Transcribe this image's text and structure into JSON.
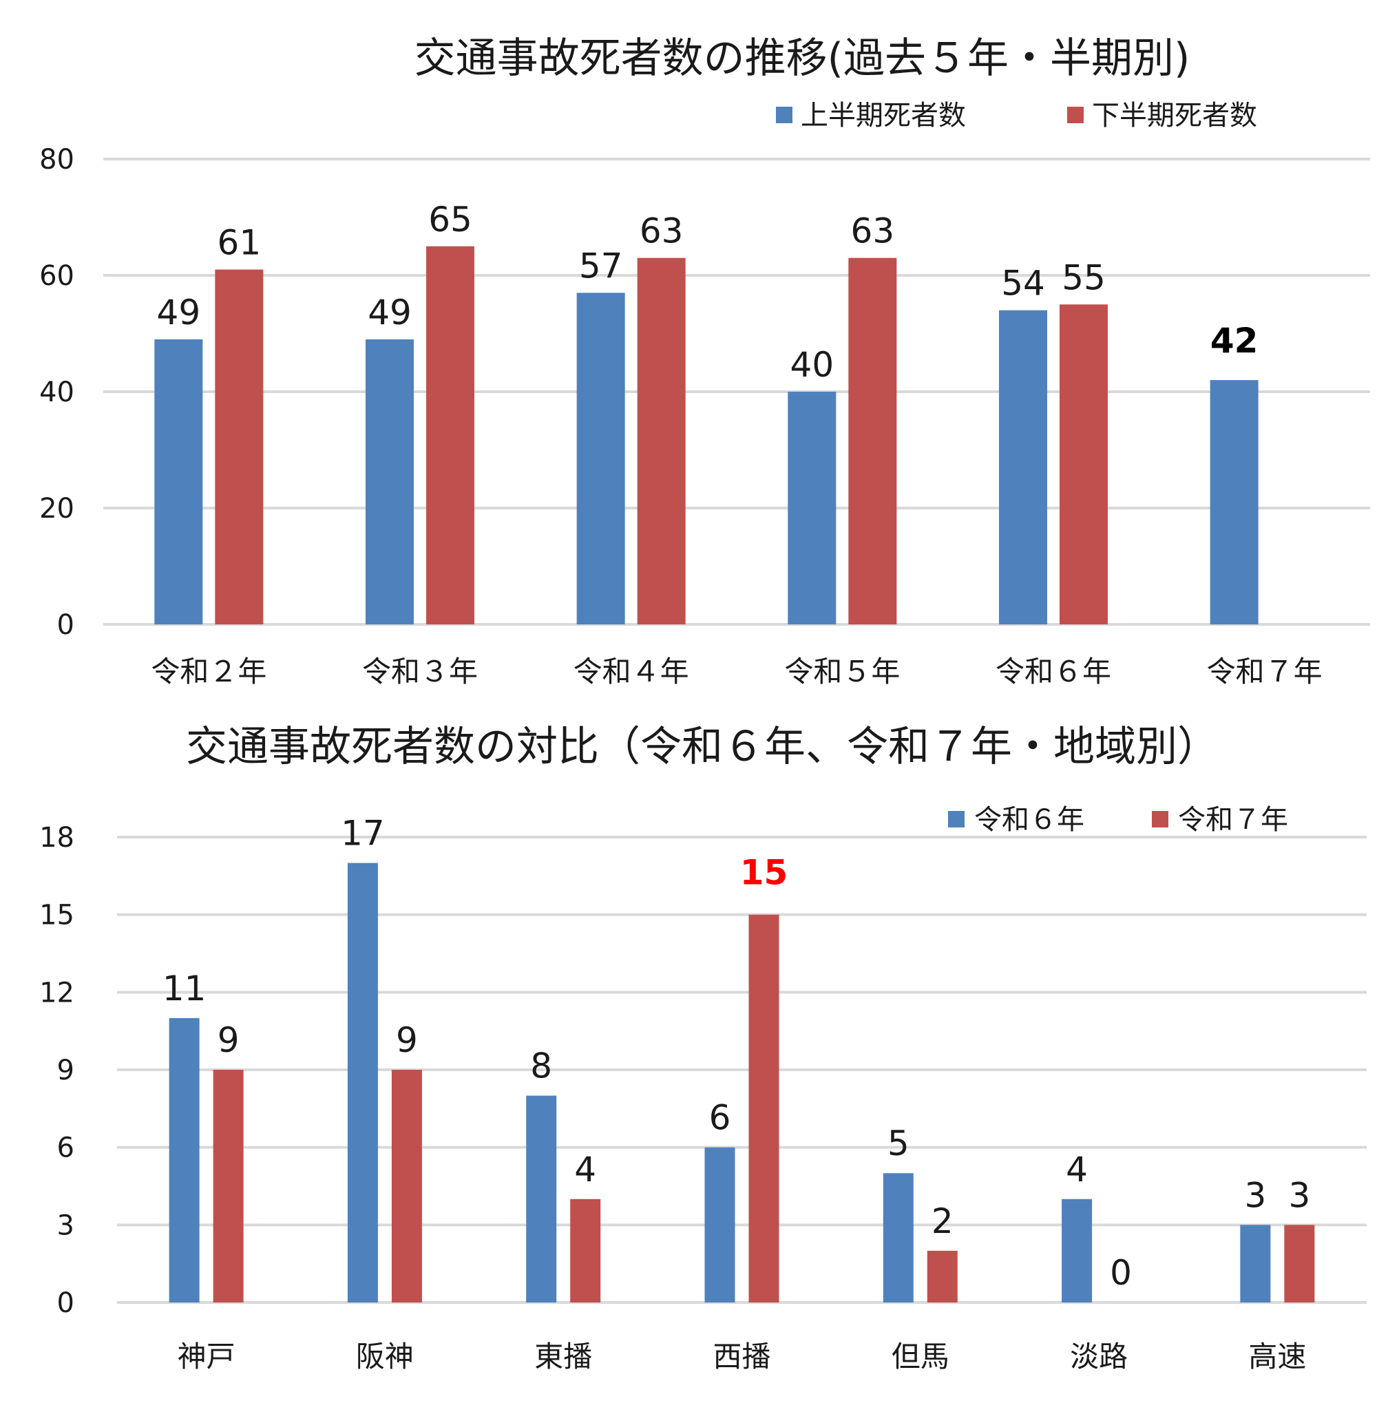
{
  "chart_data": [
    {
      "type": "bar",
      "title": "交通事故死者数の推移(過去５年・半期別)",
      "categories": [
        "令和２年",
        "令和３年",
        "令和４年",
        "令和５年",
        "令和６年",
        "令和７年"
      ],
      "series": [
        {
          "name": "上半期死者数",
          "color": "#4f81bd",
          "values": [
            49,
            49,
            57,
            40,
            54,
            42
          ]
        },
        {
          "name": "下半期死者数",
          "color": "#c0504d",
          "values": [
            61,
            65,
            63,
            63,
            55,
            null
          ]
        }
      ],
      "ylim": [
        0,
        80
      ],
      "yticks": [
        0,
        20,
        40,
        60,
        80
      ],
      "legend": "top-right",
      "grid": true,
      "highlight": {
        "series": 0,
        "index": 5,
        "color": "#000000",
        "bold": true
      }
    },
    {
      "type": "bar",
      "title": "交通事故死者数の対比（令和６年、令和７年・地域別）",
      "categories": [
        "神戸",
        "阪神",
        "東播",
        "西播",
        "但馬",
        "淡路",
        "高速"
      ],
      "series": [
        {
          "name": "令和６年",
          "color": "#4f81bd",
          "values": [
            11,
            17,
            8,
            6,
            5,
            4,
            3
          ]
        },
        {
          "name": "令和７年",
          "color": "#c0504d",
          "values": [
            9,
            9,
            4,
            15,
            2,
            0,
            3
          ]
        }
      ],
      "ylim": [
        0,
        18
      ],
      "yticks": [
        0,
        3,
        6,
        9,
        12,
        15,
        18
      ],
      "legend": "top-right",
      "grid": true,
      "highlight": {
        "series": 1,
        "index": 3,
        "color": "#ff0000",
        "bold": true
      }
    }
  ]
}
